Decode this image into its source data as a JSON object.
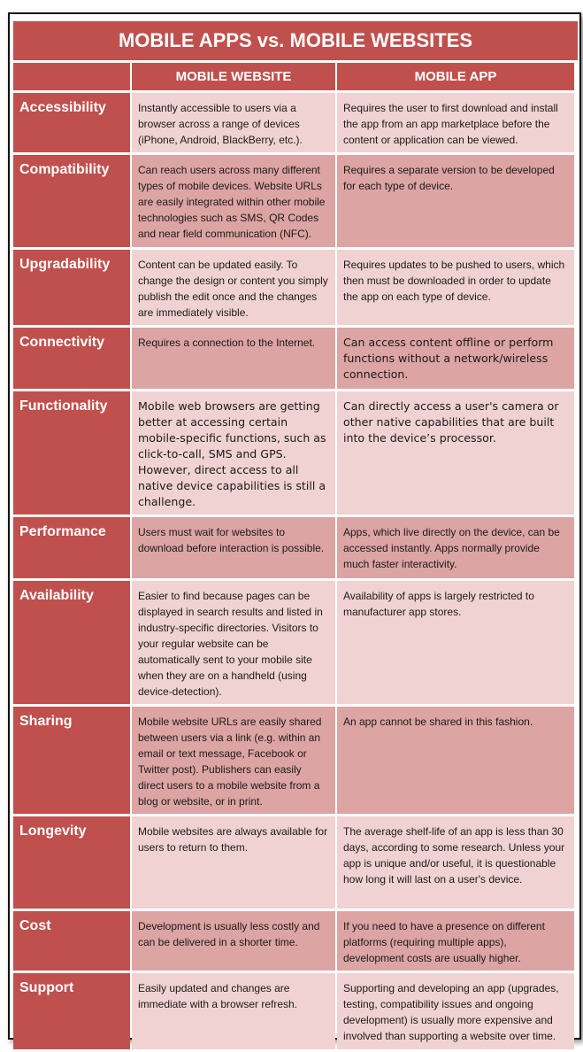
{
  "title": "MOBILE APPS vs. MOBILE WEBSITES",
  "columns": [
    "",
    "MOBILE WEBSITE",
    "MOBILE APP"
  ],
  "colors": {
    "header": "#c0504d",
    "row_light": "#f0d2d2",
    "row_dark": "#dca4a3"
  },
  "rows": [
    {
      "label": "Accessibility",
      "website": "Instantly accessible to users via a browser across a range of devices (iPhone, Android, BlackBerry, etc.).",
      "app": "Requires the user to first download and install the app from an app marketplace before the content or application can be viewed."
    },
    {
      "label": "Compatibility",
      "website": "Can reach users across many different types of mobile devices. Website URLs are easily integrated within other mobile technologies such as SMS, QR Codes and near field communication (NFC).",
      "app": "Requires a separate version to be developed for each type of device."
    },
    {
      "label": "Upgradability",
      "website": "Content can be updated easily. To change the design or content you simply publish the edit once and the changes are immediately visible.",
      "app": "Requires updates to be pushed to users, which then must be downloaded in order to update the app on each type of device."
    },
    {
      "label": "Connectivity",
      "website": "Requires a connection to the Internet.",
      "app": "Can access content offline or perform functions without a network/wireless connection."
    },
    {
      "label": "Functionality",
      "website": "Mobile web browsers are getting better at accessing certain mobile-specific functions, such as click-to-call, SMS and GPS. However, direct access to all native device capabilities is still a challenge.",
      "app": "Can directly access a user's camera or other native capabilities that are built into the device’s processor."
    },
    {
      "label": "Performance",
      "website": "Users must wait for websites to download before interaction is possible.",
      "app": "Apps, which live directly on the device, can be accessed instantly. Apps normally provide much faster interactivity."
    },
    {
      "label": "Availability",
      "website": "Easier to find because pages can be displayed in search results and listed in industry-specific directories. Visitors to your regular website can be automatically sent to your mobile site when they are on a handheld (using device-detection).",
      "app": "Availability of apps is largely restricted to manufacturer app stores."
    },
    {
      "label": "Sharing",
      "website": "Mobile website URLs are easily shared between users via a link (e.g. within an email or text message, Facebook or Twitter post). Publishers can easily direct users to a mobile website from a blog or website, or in print.",
      "app": "An app cannot be shared in this fashion."
    },
    {
      "label": "Longevity",
      "website": "Mobile websites are always available for users to return to them.",
      "app": "The average shelf-life of an app is less than 30 days, according to some research. Unless your app is unique and/or useful, it is questionable how long it will last on a user's device."
    },
    {
      "label": "Cost",
      "website": "Development is usually less costly and can be delivered in a shorter time.",
      "app": "If you need to have a presence on different platforms (requiring multiple apps), development costs are usually higher."
    },
    {
      "label": "Support",
      "website": "Easily updated and changes are immediate with a browser refresh.",
      "app": "Supporting and developing an app (upgrades, testing, compatibility issues and ongoing development) is usually more expensive and involved than supporting a website over time."
    }
  ]
}
